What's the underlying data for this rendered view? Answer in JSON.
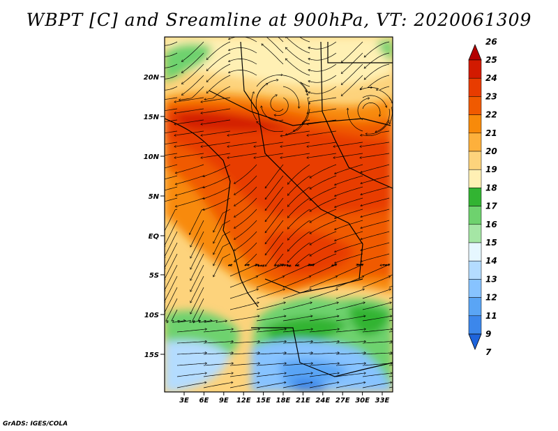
{
  "title": "WBPT [C] and Sreamline at 900hPa, VT: 2020061309",
  "credit": "GrADS: IGES/COLA",
  "map": {
    "lat_labels": [
      "20N",
      "15N",
      "10N",
      "5N",
      "EQ",
      "5S",
      "10S",
      "15S"
    ],
    "lon_labels": [
      "3E",
      "6E",
      "9E",
      "12E",
      "15E",
      "18E",
      "21E",
      "24E",
      "27E",
      "30E",
      "33E"
    ]
  },
  "colorbar": {
    "labels": [
      "26",
      "25",
      "24",
      "23",
      "22",
      "21",
      "20",
      "19",
      "18",
      "17",
      "16",
      "15",
      "14",
      "13",
      "12",
      "11",
      "9",
      "7"
    ],
    "colors": [
      "#b40000",
      "#d21a00",
      "#e83c00",
      "#f05a00",
      "#f88a0a",
      "#fdb03c",
      "#fdd37c",
      "#fff0b4",
      "#32b432",
      "#6ed26e",
      "#a5e6a5",
      "#e6f7ff",
      "#b4dcff",
      "#87c3ff",
      "#5aa5f5",
      "#3c87eb",
      "#1e64dc"
    ]
  }
}
